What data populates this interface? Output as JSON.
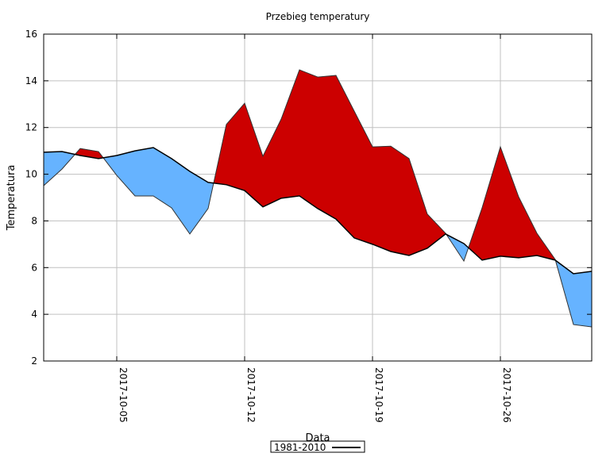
{
  "chart_data": {
    "type": "area",
    "title": "Przebieg temperatury",
    "xlabel": "Data",
    "ylabel": "Temperatura",
    "ylim": [
      2,
      16
    ],
    "yticks": [
      2,
      4,
      6,
      8,
      10,
      12,
      14,
      16
    ],
    "xlim": [
      "2017-10-01",
      "2017-10-31"
    ],
    "xticks": [
      "2017-10-05",
      "2017-10-12",
      "2017-10-19",
      "2017-10-26"
    ],
    "grid": true,
    "legend_placement": "bottom-center",
    "colors": {
      "above": "#cc0000",
      "below": "#66b3ff",
      "line": "#000000",
      "grid": "#c0c0c0"
    },
    "x": [
      "2017-10-01",
      "2017-10-02",
      "2017-10-03",
      "2017-10-04",
      "2017-10-05",
      "2017-10-06",
      "2017-10-07",
      "2017-10-08",
      "2017-10-09",
      "2017-10-10",
      "2017-10-11",
      "2017-10-12",
      "2017-10-13",
      "2017-10-14",
      "2017-10-15",
      "2017-10-16",
      "2017-10-17",
      "2017-10-18",
      "2017-10-19",
      "2017-10-20",
      "2017-10-21",
      "2017-10-22",
      "2017-10-23",
      "2017-10-24",
      "2017-10-25",
      "2017-10-26",
      "2017-10-27",
      "2017-10-28",
      "2017-10-29",
      "2017-10-30",
      "2017-10-31"
    ],
    "series": [
      {
        "name": "1981-2010",
        "values": [
          10.94,
          10.97,
          10.8,
          10.67,
          10.8,
          11.0,
          11.14,
          10.67,
          10.12,
          9.65,
          9.55,
          9.3,
          8.6,
          8.97,
          9.07,
          8.53,
          8.08,
          7.27,
          7.0,
          6.69,
          6.52,
          6.83,
          7.44,
          7.03,
          6.32,
          6.49,
          6.42,
          6.52,
          6.32,
          5.74,
          5.84
        ]
      },
      {
        "values": [
          9.51,
          10.22,
          11.1,
          10.97,
          9.95,
          9.07,
          9.07,
          8.56,
          7.44,
          8.53,
          12.13,
          13.04,
          10.77,
          12.36,
          14.47,
          14.16,
          14.23,
          12.7,
          11.17,
          11.2,
          10.67,
          8.29,
          7.47,
          6.28,
          8.56,
          11.17,
          9.03,
          7.47,
          6.35,
          3.56,
          3.46
        ]
      }
    ]
  }
}
